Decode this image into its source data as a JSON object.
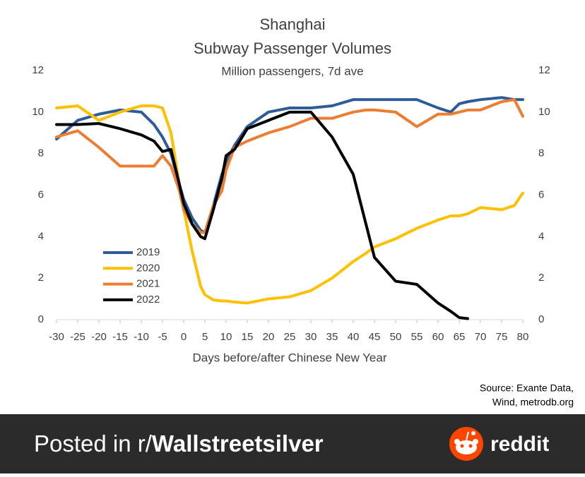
{
  "chart_data": {
    "type": "line",
    "title": [
      "Shanghai",
      "Subway Passenger Volumes"
    ],
    "subtitle": "Million passengers, 7d ave",
    "x_label": "Days before/after Chinese New Year",
    "source": [
      "Source: Exante Data,",
      "Wind, metrodb.org"
    ],
    "x": [
      -30,
      -25,
      -20,
      -15,
      -10,
      -7,
      -5,
      -3,
      -1,
      0,
      2,
      4,
      5,
      7,
      9,
      10,
      12,
      15,
      20,
      25,
      30,
      35,
      40,
      43,
      45,
      50,
      55,
      60,
      63,
      65,
      67,
      70,
      75,
      78,
      80
    ],
    "series": [
      {
        "name": "2019",
        "color": "#2e5b9a",
        "values": [
          8.7,
          9.6,
          9.9,
          10.1,
          10.0,
          9.4,
          8.8,
          8.0,
          6.5,
          5.8,
          4.9,
          4.3,
          4.2,
          5.5,
          7.0,
          7.6,
          8.4,
          9.3,
          10.0,
          10.2,
          10.2,
          10.3,
          10.6,
          10.6,
          10.6,
          10.6,
          10.6,
          10.2,
          10.0,
          10.4,
          10.5,
          10.6,
          10.7,
          10.6,
          10.6
        ]
      },
      {
        "name": "2020",
        "color": "#ffc000",
        "values": [
          10.2,
          10.3,
          9.6,
          10.0,
          10.3,
          10.3,
          10.2,
          9.0,
          6.5,
          5.3,
          3.3,
          1.6,
          1.2,
          0.95,
          0.9,
          0.9,
          0.85,
          0.8,
          1.0,
          1.1,
          1.4,
          2.0,
          2.8,
          3.2,
          3.5,
          3.9,
          4.4,
          4.8,
          5.0,
          5.0,
          5.1,
          5.4,
          5.3,
          5.5,
          6.1
        ]
      },
      {
        "name": "2021",
        "color": "#ed7d31",
        "values": [
          8.8,
          9.1,
          8.3,
          7.4,
          7.4,
          7.4,
          7.9,
          7.4,
          6.2,
          5.3,
          4.6,
          4.2,
          4.2,
          5.5,
          6.2,
          7.2,
          8.3,
          8.6,
          9.0,
          9.3,
          9.7,
          9.7,
          10.0,
          10.1,
          10.1,
          10.0,
          9.3,
          9.9,
          9.9,
          10.0,
          10.1,
          10.1,
          10.5,
          10.6,
          9.8
        ]
      },
      {
        "name": "2022",
        "color": "#000000",
        "values": [
          9.4,
          9.4,
          9.45,
          9.2,
          8.9,
          8.6,
          8.1,
          8.2,
          6.5,
          5.6,
          4.6,
          4.0,
          3.9,
          5.3,
          6.8,
          7.9,
          8.2,
          9.2,
          9.6,
          10.0,
          10.0,
          8.8,
          7.0,
          4.6,
          3.0,
          1.85,
          1.7,
          0.8,
          0.4,
          0.1,
          0.05,
          null,
          null,
          null,
          null
        ]
      }
    ],
    "xlim": [
      -30,
      80
    ],
    "xticks": [
      -30,
      -25,
      -20,
      -15,
      -10,
      -5,
      0,
      5,
      10,
      15,
      20,
      25,
      30,
      35,
      40,
      45,
      50,
      55,
      60,
      65,
      70,
      75,
      80
    ],
    "ylim": [
      0,
      12
    ],
    "yticks": [
      0,
      2,
      4,
      6,
      8,
      10,
      12
    ],
    "y2lim": [
      0,
      12
    ],
    "y2ticks": [
      0,
      2,
      4,
      6,
      8,
      10,
      12
    ],
    "grid": false,
    "legend": "left"
  },
  "footer": {
    "prefix": "Posted in r/",
    "subreddit": "Wallstreetsilver",
    "brand": "reddit"
  }
}
